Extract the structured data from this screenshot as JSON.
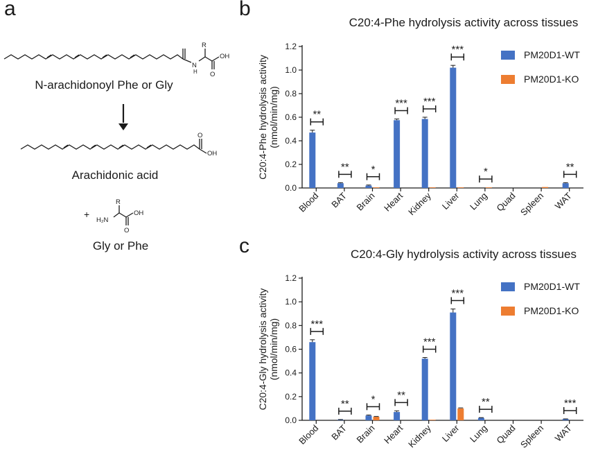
{
  "panels": {
    "a": "a",
    "b": "b",
    "c": "c"
  },
  "scheme": {
    "substrate_label": "N-arachidonoyl Phe or Gly",
    "product_label": "Arachidonic acid",
    "byproduct_label": "Gly or Phe",
    "plus": "+",
    "atom_R": "R",
    "atom_N": "N",
    "atom_H": "H",
    "atom_OH": "OH",
    "atom_O": "O",
    "atom_H2N": "H₂N"
  },
  "colors": {
    "wt": "#4472c4",
    "ko": "#ed7d31"
  },
  "chart_data": [
    {
      "type": "bar",
      "title": "C20:4-Phe hydrolysis activity across tissues",
      "ylabel": "C20:4-Phe hydrolysis activity",
      "ylabel_units": "(nmol/min/mg)",
      "xlabel": "",
      "ylim": [
        0,
        1.2
      ],
      "yticks": [
        "0.0",
        "0.2",
        "0.4",
        "0.6",
        "0.8",
        "1.0",
        "1.2"
      ],
      "categories": [
        "Blood",
        "BAT",
        "Brain",
        "Heart",
        "Kidney",
        "Liver",
        "Lung",
        "Quad",
        "Spleen",
        "WAT"
      ],
      "series": [
        {
          "name": "PM20D1-WT",
          "values": [
            0.47,
            0.04,
            0.02,
            0.575,
            0.585,
            1.02,
            0.0,
            0.0,
            0.0,
            0.04
          ],
          "errors": [
            0.02,
            0.005,
            0.005,
            0.01,
            0.015,
            0.02,
            0.0,
            0.0,
            0.0,
            0.005
          ]
        },
        {
          "name": "PM20D1-KO",
          "values": [
            0.0,
            0.0,
            0.005,
            0.0,
            0.005,
            0.005,
            0.005,
            0.0,
            0.008,
            0.0
          ],
          "errors": [
            0,
            0,
            0,
            0,
            0,
            0,
            0,
            0,
            0,
            0
          ]
        }
      ],
      "significance": [
        "**",
        "**",
        "*",
        "***",
        "***",
        "***",
        "*",
        "",
        "",
        "**"
      ],
      "legend_position": "top-right",
      "grid": false
    },
    {
      "type": "bar",
      "title": "C20:4-Gly hydrolysis activity across tissues",
      "ylabel": "C20:4-Gly hydrolysis activity",
      "ylabel_units": "(nmol/min/mg)",
      "xlabel": "",
      "ylim": [
        0,
        1.2
      ],
      "yticks": [
        "0.0",
        "0.2",
        "0.4",
        "0.6",
        "0.8",
        "1.0",
        "1.2"
      ],
      "categories": [
        "Blood",
        "BAT",
        "Brain",
        "Heart",
        "Kidney",
        "Liver",
        "Lung",
        "Quad",
        "Spleen",
        "WAT"
      ],
      "series": [
        {
          "name": "PM20D1-WT",
          "values": [
            0.66,
            0.005,
            0.04,
            0.07,
            0.52,
            0.91,
            0.02,
            0.0,
            0.0,
            0.01
          ],
          "errors": [
            0.02,
            0.002,
            0.005,
            0.01,
            0.01,
            0.03,
            0.003,
            0.0,
            0.0,
            0.002
          ]
        },
        {
          "name": "PM20D1-KO",
          "values": [
            0.0,
            0.0,
            0.03,
            0.0,
            0.005,
            0.1,
            0.0,
            0.0,
            0.0,
            0.0
          ],
          "errors": [
            0,
            0,
            0.003,
            0,
            0,
            0.005,
            0,
            0,
            0,
            0
          ]
        }
      ],
      "significance": [
        "***",
        "**",
        "*",
        "**",
        "***",
        "***",
        "**",
        "",
        "",
        "***"
      ],
      "legend_position": "top-right",
      "grid": false
    }
  ]
}
